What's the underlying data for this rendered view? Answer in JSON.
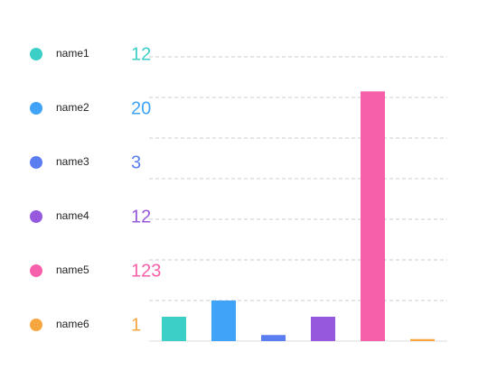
{
  "chart_data": {
    "type": "bar",
    "categories": [
      "name1",
      "name2",
      "name3",
      "name4",
      "name5",
      "name6"
    ],
    "values": [
      12,
      20,
      3,
      12,
      123,
      1
    ],
    "colors": [
      "#3ccfc7",
      "#40a3f7",
      "#5a7ef0",
      "#9658dc",
      "#f660aa",
      "#f8a640"
    ],
    "ylim": [
      0,
      140
    ],
    "yticks": [
      0,
      20,
      40,
      60,
      80,
      100,
      120,
      140
    ],
    "grid": true
  }
}
